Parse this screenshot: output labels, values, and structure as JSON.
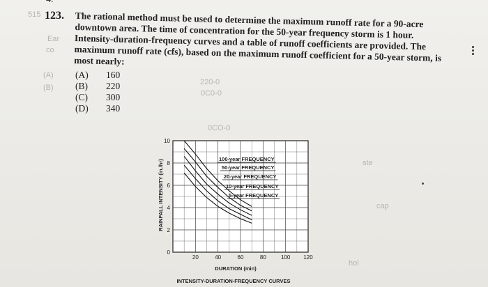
{
  "page": {
    "top_mark": "4.",
    "ghost_marks": [
      "515",
      "(A)",
      "(B)",
      "Ear",
      "co",
      "220-0",
      "0C0-0",
      "0CO-0",
      "ste",
      "cap",
      "hol"
    ]
  },
  "question": {
    "number": "123.",
    "text": "The rational method must be used to determine the maximum runoff rate for a 90-acre downtown area. The time of concentration for the 50-year frequency storm is 1 hour. Intensity-duration-frequency curves and a table of runoff coefficients are provided. The maximum runoff rate (cfs), based on the maximum runoff coefficient for a 50-year storm, is most nearly:",
    "choices": [
      {
        "letter": "(A)",
        "value": "160"
      },
      {
        "letter": "(B)",
        "value": "220"
      },
      {
        "letter": "(C)",
        "value": "300"
      },
      {
        "letter": "(D)",
        "value": "340"
      }
    ]
  },
  "chart_data": {
    "type": "line",
    "title": "INTENSITY-DURATION-FREQUENCY CURVES",
    "xlabel": "DURATION (min)",
    "ylabel": "RAINFALL INTENSITY (in./hr)",
    "xlim": [
      0,
      120
    ],
    "ylim": [
      0,
      10
    ],
    "x_ticks": [
      "20",
      "40",
      "60",
      "80",
      "100",
      "120"
    ],
    "y_ticks": [
      "0",
      "2",
      "4",
      "6",
      "8",
      "10"
    ],
    "grid": true,
    "legend_position": "top-right",
    "series": [
      {
        "name": "100-year FREQUENCY",
        "x": [
          10,
          20,
          30,
          40,
          50,
          60,
          70
        ],
        "y": [
          10.0,
          8.8,
          7.5,
          6.4,
          5.5,
          4.7,
          4.1
        ]
      },
      {
        "name": "50-year FREQUENCY",
        "x": [
          10,
          20,
          30,
          40,
          50,
          60,
          70
        ],
        "y": [
          9.3,
          8.1,
          6.8,
          5.8,
          4.9,
          4.2,
          3.7
        ]
      },
      {
        "name": "20-year FREQUENCY",
        "x": [
          10,
          20,
          30,
          40,
          50,
          60,
          70
        ],
        "y": [
          8.6,
          7.3,
          6.1,
          5.2,
          4.4,
          3.8,
          3.3
        ]
      },
      {
        "name": "10-year FREQUENCY",
        "x": [
          10,
          20,
          30,
          40,
          50,
          60,
          70
        ],
        "y": [
          7.8,
          6.6,
          5.5,
          4.6,
          3.9,
          3.4,
          2.9
        ]
      },
      {
        "name": "5-year FREQUENCY",
        "x": [
          10,
          20,
          30,
          40,
          50,
          60,
          70
        ],
        "y": [
          7.1,
          5.9,
          4.9,
          4.1,
          3.5,
          3.0,
          2.6
        ]
      }
    ]
  }
}
